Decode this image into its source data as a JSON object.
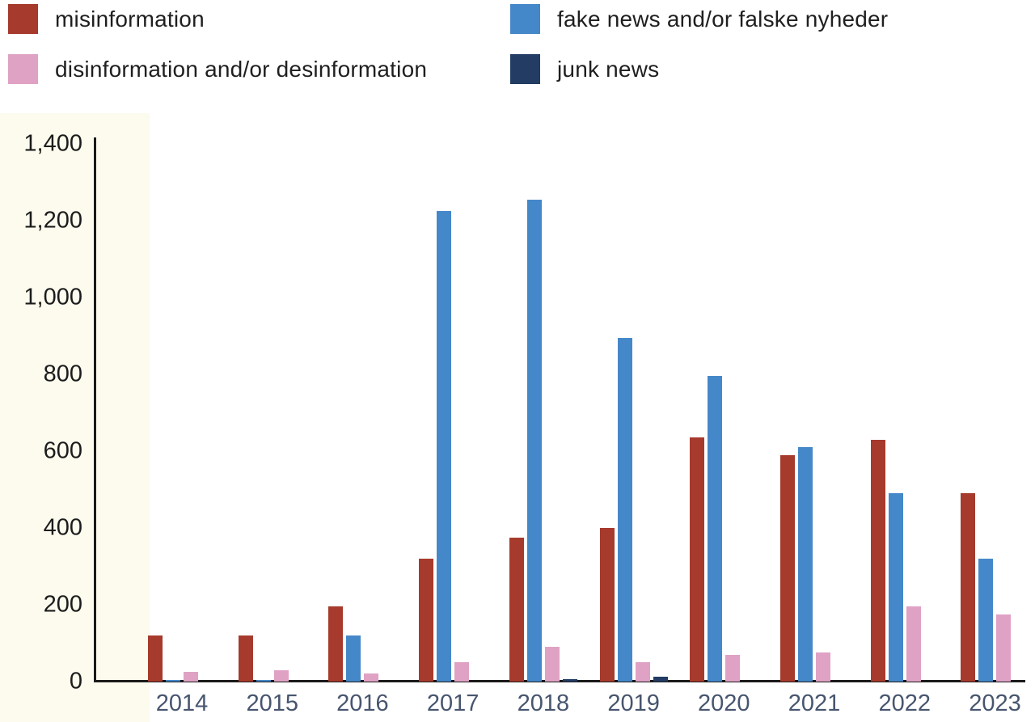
{
  "legend": {
    "items": [
      {
        "label": "misinformation",
        "color": "#a63a2c"
      },
      {
        "label": "fake news and/or falske nyheder",
        "color": "#4588c9"
      },
      {
        "label": "disinformation and/or desinformation",
        "color": "#dfa2c4"
      },
      {
        "label": "junk news",
        "color": "#223c63"
      }
    ]
  },
  "chart_data": {
    "type": "bar",
    "categories": [
      "2014",
      "2015",
      "2016",
      "2017",
      "2018",
      "2019",
      "2020",
      "2021",
      "2022",
      "2023"
    ],
    "series": [
      {
        "name": "misinformation",
        "color": "#a63a2c",
        "values": [
          120,
          120,
          195,
          320,
          375,
          400,
          635,
          590,
          630,
          490
        ]
      },
      {
        "name": "fake news and/or falske nyheder",
        "color": "#4588c9",
        "values": [
          5,
          5,
          120,
          1225,
          1255,
          895,
          795,
          610,
          490,
          320
        ]
      },
      {
        "name": "disinformation and/or desinformation",
        "color": "#dfa2c4",
        "values": [
          25,
          30,
          22,
          50,
          90,
          50,
          70,
          75,
          195,
          175
        ]
      },
      {
        "name": "junk news",
        "color": "#223c63",
        "values": [
          0,
          0,
          0,
          0,
          6,
          13,
          0,
          0,
          0,
          0
        ]
      }
    ],
    "title": "",
    "xlabel": "",
    "ylabel": "",
    "ylim": [
      0,
      1400
    ],
    "ytick_labels": [
      "0",
      "200",
      "400",
      "600",
      "800",
      "1,000",
      "1,200",
      "1,400"
    ],
    "ytick_values": [
      0,
      200,
      400,
      600,
      800,
      1000,
      1200,
      1400
    ],
    "grid": false,
    "legend_position": "top"
  },
  "colors": {
    "axis": "#1a1a1a",
    "x_tick_label": "#47556e",
    "y_tick_label": "#1c1c1c",
    "panel_strip_bg": "#fcfbee",
    "plot_bg": "#ffffff"
  }
}
